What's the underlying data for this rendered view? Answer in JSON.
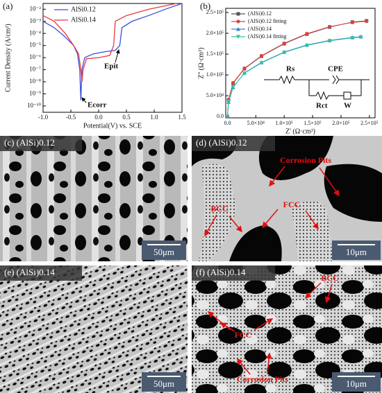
{
  "chart_data": [
    {
      "type": "line",
      "panel_label": "(a)",
      "xlabel": "Potential(V) vs. SCE",
      "ylabel": "Current Density (A/cm²)",
      "log_y": true,
      "legend": "upper left",
      "xlim": [
        -1.0,
        1.5
      ],
      "xticks": [
        {
          "value": -1,
          "label": "-1.0"
        },
        {
          "value": -0.5,
          "label": "-0.5"
        },
        {
          "value": 0,
          "label": "0.0"
        },
        {
          "value": 0.5,
          "label": "0.5"
        },
        {
          "value": 1,
          "label": "1.0"
        },
        {
          "value": 1.5,
          "label": "1.5"
        }
      ],
      "ylim": [
        3e-11,
        0.03
      ],
      "yticks": [
        {
          "value": 1e-10,
          "label": "10⁻¹⁰"
        },
        {
          "value": 1e-09,
          "label": "10⁻⁹"
        },
        {
          "value": 1e-08,
          "label": "10⁻⁸"
        },
        {
          "value": 1e-07,
          "label": "10⁻⁷"
        },
        {
          "value": 1e-06,
          "label": "10⁻⁶"
        },
        {
          "value": 1e-05,
          "label": "10⁻⁵"
        },
        {
          "value": 0.0001,
          "label": "10⁻⁴"
        },
        {
          "value": 0.001,
          "label": "10⁻³"
        },
        {
          "value": 0.01,
          "label": "10⁻²"
        }
      ],
      "series": [
        {
          "name": "AlSi0.12",
          "color": "#3b4fd9",
          "x": [
            -1.0,
            -0.8,
            -0.6,
            -0.45,
            -0.38,
            -0.34,
            -0.32,
            -0.3,
            -0.25,
            -0.1,
            0.1,
            0.3,
            0.38,
            0.42,
            0.6,
            0.9,
            1.2,
            1.5
          ],
          "values": [
            0.001,
            0.0003,
            5e-05,
            1e-05,
            2e-06,
            1e-07,
            3e-10,
            1e-07,
            1e-06,
            2e-06,
            3e-06,
            4e-06,
            1e-05,
            0.0003,
            0.001,
            0.003,
            0.01,
            0.03
          ]
        },
        {
          "name": "AlSi0.14",
          "color": "#e8383d",
          "x": [
            -1.0,
            -0.8,
            -0.6,
            -0.45,
            -0.36,
            -0.32,
            -0.3,
            -0.28,
            -0.22,
            0.0,
            0.2,
            0.27,
            0.3,
            0.5,
            0.9,
            1.4
          ],
          "values": [
            0.003,
            0.001,
            0.0001,
            1e-05,
            2e-06,
            1e-07,
            1e-08,
            1e-07,
            8e-07,
            1e-06,
            1.5e-06,
            1e-05,
            0.001,
            0.003,
            0.01,
            0.03
          ]
        }
      ],
      "annotations": [
        "Ecorr",
        "Epit"
      ]
    },
    {
      "type": "line",
      "panel_label": "(b)",
      "xlabel": "Z' (Ω·cm²)",
      "ylabel": "Z'' (Ω·cm²)",
      "log_y": false,
      "legend": "upper left",
      "xlim": [
        -3000,
        260000
      ],
      "xticks": [
        {
          "value": 0,
          "label": "0.0"
        },
        {
          "value": 50000,
          "label": "5.0×10⁴"
        },
        {
          "value": 100000,
          "label": "1.0×10⁵"
        },
        {
          "value": 150000,
          "label": "1.5×10⁵"
        },
        {
          "value": 200000,
          "label": "2.0×10⁵"
        },
        {
          "value": 250000,
          "label": "2.5×10⁵"
        }
      ],
      "ylim": [
        -3000,
        260000
      ],
      "yticks": [
        {
          "value": 0,
          "label": "0.0"
        },
        {
          "value": 50000,
          "label": "5.0×10⁴"
        },
        {
          "value": 100000,
          "label": "1.0×10⁵"
        },
        {
          "value": 150000,
          "label": "1.5×10⁵"
        },
        {
          "value": 200000,
          "label": "2.0×10⁵"
        },
        {
          "value": 250000,
          "label": "2.5×10⁵"
        }
      ],
      "series": [
        {
          "name": "(AlSi)0.12",
          "color": "#555555",
          "marker": "square",
          "x": [
            0,
            2000,
            10000,
            30000,
            60000,
            100000,
            140000,
            180000,
            220000,
            245000
          ],
          "values": [
            0,
            40000,
            80000,
            115000,
            145000,
            175000,
            198000,
            215000,
            227000,
            230000
          ]
        },
        {
          "name": "(AlSi)0.12 fitting",
          "color": "#e04040",
          "marker": "circle",
          "x": [
            0,
            2000,
            10000,
            30000,
            60000,
            100000,
            140000,
            180000,
            220000,
            245000
          ],
          "values": [
            0,
            41000,
            81000,
            116000,
            146000,
            176000,
            199000,
            216000,
            226000,
            229000
          ]
        },
        {
          "name": "(AlSi)0.14",
          "color": "#3a7fd5",
          "marker": "triangle",
          "x": [
            0,
            2000,
            10000,
            30000,
            60000,
            100000,
            140000,
            180000,
            220000,
            235000
          ],
          "values": [
            0,
            35000,
            70000,
            105000,
            130000,
            155000,
            172000,
            183000,
            190000,
            192000
          ]
        },
        {
          "name": "(AlSi)0.14 fitting",
          "color": "#2ec4a0",
          "marker": "triangle-down",
          "x": [
            0,
            2000,
            10000,
            30000,
            60000,
            100000,
            140000,
            180000,
            220000,
            235000
          ],
          "values": [
            0,
            36000,
            71000,
            104000,
            129000,
            154000,
            171000,
            182000,
            189000,
            191000
          ]
        }
      ],
      "circuit": [
        "Rs",
        "CPE",
        "Rct",
        "W"
      ]
    }
  ],
  "panels": [
    {
      "label": "(c) (AlSi)0.12",
      "scale_bar": "50μm"
    },
    {
      "label": "(d) (AlSi)0.12",
      "scale_bar": "10μm",
      "annotations": [
        "Corrosion Pits",
        "BCC",
        "FCC"
      ]
    },
    {
      "label": "(e) (AlSi)0.14",
      "scale_bar": "50μm"
    },
    {
      "label": "(f) (AlSi)0.14",
      "scale_bar": "10μm",
      "annotations": [
        "BCC",
        "FCC",
        "Corrosion Pits"
      ]
    }
  ]
}
